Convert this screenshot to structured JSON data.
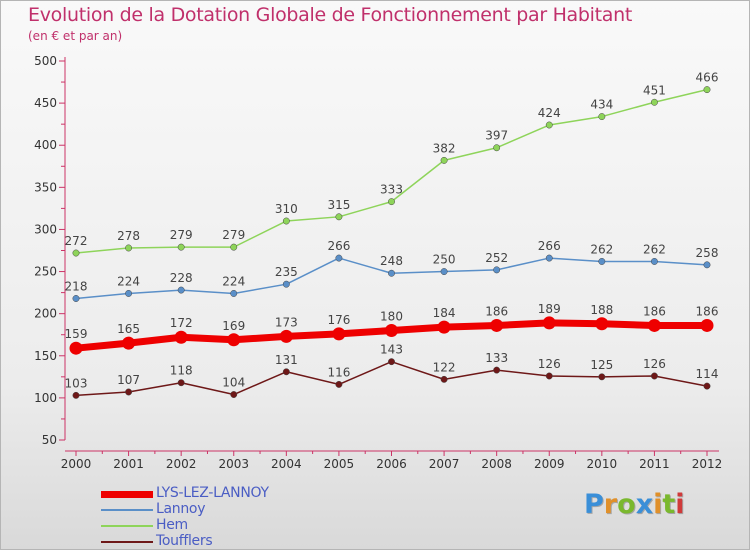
{
  "title": "Evolution de la Dotation Globale de Fonctionnement par Habitant",
  "subtitle": "(en € et par an)",
  "logo": {
    "text": "Proxiti",
    "letters": [
      "P",
      "r",
      "o",
      "x",
      "i",
      "t",
      "i"
    ],
    "colors": [
      "#3a8fd8",
      "#e0902a",
      "#7ab82e",
      "#3a8fd8",
      "#e0902a",
      "#7ab82e",
      "#d03a3a"
    ]
  },
  "chart_data": {
    "type": "line",
    "x": [
      2000,
      2001,
      2002,
      2003,
      2004,
      2005,
      2006,
      2007,
      2008,
      2009,
      2010,
      2011,
      2012
    ],
    "ylim": [
      50,
      500
    ],
    "yticks": [
      50,
      100,
      150,
      200,
      250,
      300,
      350,
      400,
      450,
      500
    ],
    "grid": false,
    "legend_position": "bottom-left",
    "series": [
      {
        "name": "LYS-LEZ-LANNOY",
        "color": "#ee0000",
        "values": [
          159,
          165,
          172,
          169,
          173,
          176,
          180,
          184,
          186,
          189,
          188,
          186,
          186
        ]
      },
      {
        "name": "Lannoy",
        "color": "#5a8fc8",
        "values": [
          218,
          224,
          228,
          224,
          235,
          266,
          248,
          250,
          252,
          266,
          262,
          262,
          258
        ]
      },
      {
        "name": "Hem",
        "color": "#8ed45a",
        "values": [
          272,
          278,
          279,
          279,
          310,
          315,
          333,
          382,
          397,
          424,
          434,
          451,
          466
        ]
      },
      {
        "name": "Toufflers",
        "color": "#6e1818",
        "values": [
          103,
          107,
          118,
          104,
          131,
          116,
          143,
          122,
          133,
          126,
          125,
          126,
          114
        ]
      }
    ]
  }
}
